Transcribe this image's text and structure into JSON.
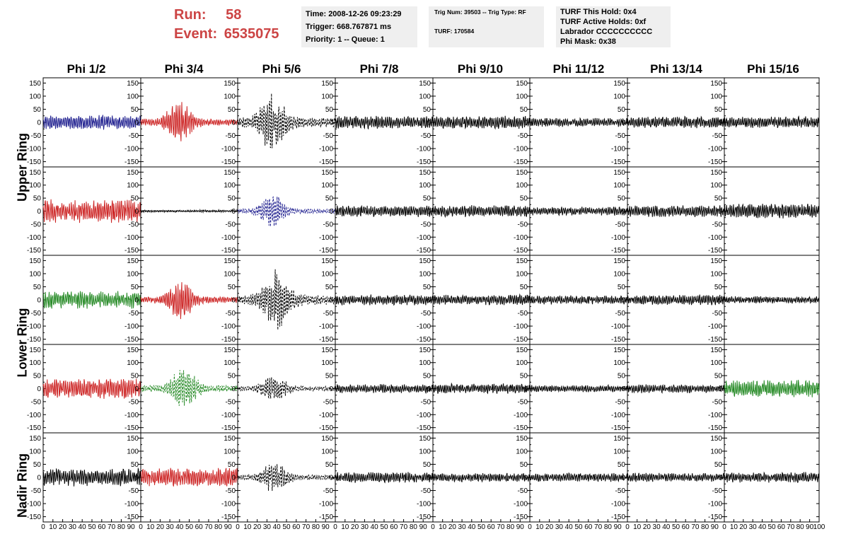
{
  "run": {
    "run_label": "Run:",
    "run_value": "58",
    "event_label": "Event:",
    "event_value": "6535075"
  },
  "info": {
    "time": "Time: 2008-12-26 09:23:29",
    "trigger": "Trigger: 668.767871 ms",
    "priority": "Priority: 1 -- Queue: 1",
    "trig_num": "Trig Num: 39503 -- Trig Type: RF",
    "turf": "TURF: 170584",
    "turf_hold": "TURF This Hold: 0x4",
    "turf_active": "TURF Active Holds: 0xf",
    "labrador": "Labrador CCCCCCCCCC",
    "phi_mask": "Phi Mask: 0x38"
  },
  "columns": [
    "Phi 1/2",
    "Phi 3/4",
    "Phi 5/6",
    "Phi 7/8",
    "Phi 9/10",
    "Phi 11/12",
    "Phi 13/14",
    "Phi 15/16"
  ],
  "ring_labels": [
    "Upper Ring",
    "Lower Ring",
    "Nadir Ring"
  ],
  "y_ticks": [
    "150",
    "100",
    "50",
    "0",
    "-50",
    "-100",
    "-150"
  ],
  "x_tick_labels": [
    "0",
    "10",
    "20",
    "30",
    "40",
    "50",
    "60",
    "70",
    "80",
    "90",
    "100"
  ],
  "colors": {
    "blue": "#1f1f8f",
    "red": "#cc2222",
    "green": "#228822",
    "black": "#000000",
    "title_red": "#cc4444",
    "info_bg": "#efefef"
  },
  "chart_data": {
    "type": "line",
    "x_range": [
      0,
      100
    ],
    "y_range": [
      -170,
      170
    ],
    "rows": 5,
    "cols": 8,
    "panels": [
      [
        {
          "color": "blue",
          "amp": 25,
          "dashed": false
        },
        {
          "color": "red",
          "amp": 75,
          "dashed": false
        },
        {
          "color": "black",
          "amp": 110,
          "dashed": true
        },
        {
          "color": "black",
          "amp": 22,
          "dashed": false
        },
        {
          "color": "black",
          "amp": 22,
          "dashed": false
        },
        {
          "color": "black",
          "amp": 15,
          "dashed": false
        },
        {
          "color": "black",
          "amp": 20,
          "dashed": false
        },
        {
          "color": "black",
          "amp": 20,
          "dashed": false
        }
      ],
      [
        {
          "color": "red",
          "amp": 40,
          "dashed": false
        },
        {
          "color": "black",
          "amp": 4,
          "dashed": false
        },
        {
          "color": "blue",
          "amp": 55,
          "dashed": true
        },
        {
          "color": "black",
          "amp": 20,
          "dashed": false
        },
        {
          "color": "black",
          "amp": 20,
          "dashed": false
        },
        {
          "color": "black",
          "amp": 15,
          "dashed": false
        },
        {
          "color": "black",
          "amp": 20,
          "dashed": false
        },
        {
          "color": "black",
          "amp": 25,
          "dashed": false
        }
      ],
      [
        {
          "color": "green",
          "amp": 30,
          "dashed": false
        },
        {
          "color": "red",
          "amp": 70,
          "dashed": false
        },
        {
          "color": "black",
          "amp": 110,
          "dashed": true
        },
        {
          "color": "black",
          "amp": 18,
          "dashed": false
        },
        {
          "color": "black",
          "amp": 18,
          "dashed": false
        },
        {
          "color": "black",
          "amp": 15,
          "dashed": false
        },
        {
          "color": "black",
          "amp": 18,
          "dashed": false
        },
        {
          "color": "black",
          "amp": 12,
          "dashed": false
        }
      ],
      [
        {
          "color": "red",
          "amp": 35,
          "dashed": false
        },
        {
          "color": "green",
          "amp": 75,
          "dashed": true
        },
        {
          "color": "black",
          "amp": 50,
          "dashed": true
        },
        {
          "color": "black",
          "amp": 15,
          "dashed": false
        },
        {
          "color": "black",
          "amp": 18,
          "dashed": false
        },
        {
          "color": "black",
          "amp": 12,
          "dashed": false
        },
        {
          "color": "black",
          "amp": 15,
          "dashed": false
        },
        {
          "color": "green",
          "amp": 30,
          "dashed": false
        }
      ],
      [
        {
          "color": "black",
          "amp": 30,
          "dashed": false
        },
        {
          "color": "red",
          "amp": 35,
          "dashed": false
        },
        {
          "color": "black",
          "amp": 55,
          "dashed": true
        },
        {
          "color": "black",
          "amp": 18,
          "dashed": false
        },
        {
          "color": "black",
          "amp": 15,
          "dashed": false
        },
        {
          "color": "black",
          "amp": 15,
          "dashed": false
        },
        {
          "color": "black",
          "amp": 15,
          "dashed": false
        },
        {
          "color": "black",
          "amp": 18,
          "dashed": false
        }
      ]
    ]
  }
}
